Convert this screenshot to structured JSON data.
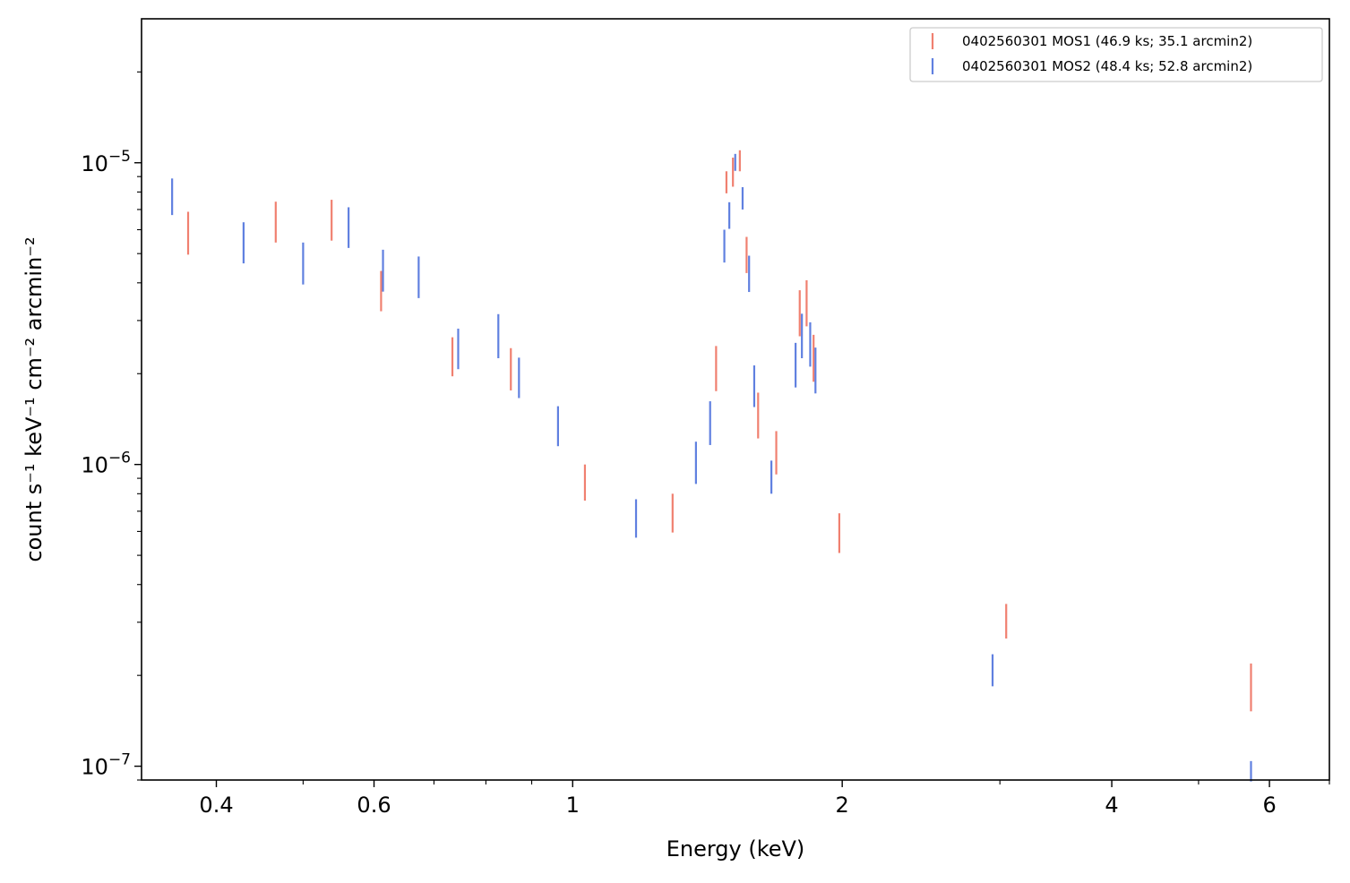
{
  "chart_data": {
    "type": "scatter",
    "style": "vertical error bars",
    "xlabel": "Energy (keV)",
    "ylabel": "count s⁻¹ keV⁻¹ cm⁻² arcmin⁻²",
    "xscale": "log",
    "yscale": "log",
    "xlim": [
      0.33,
      7.0
    ],
    "ylim": [
      9e-08,
      3e-05
    ],
    "x_ticks": [
      {
        "value": 0.4,
        "label": "0.4"
      },
      {
        "value": 0.6,
        "label": "0.6"
      },
      {
        "value": 1,
        "label": "1"
      },
      {
        "value": 2,
        "label": "2"
      },
      {
        "value": 4,
        "label": "4"
      },
      {
        "value": 6,
        "label": "6"
      }
    ],
    "y_ticks": [
      {
        "value": 1e-05,
        "base": "10",
        "exp": "−5"
      },
      {
        "value": 1e-06,
        "base": "10",
        "exp": "−6"
      },
      {
        "value": 1e-07,
        "base": "10",
        "exp": "−7"
      }
    ],
    "grid": false,
    "legend_position": "top-right",
    "series": [
      {
        "name": "0402560301 MOS1 (46.9 ks; 35.1 arcmin2)",
        "color": "#f08070",
        "points": [
          {
            "x": 0.372,
            "y_low": 4.96e-06,
            "y_high": 6.88e-06
          },
          {
            "x": 0.466,
            "y_low": 5.44e-06,
            "y_high": 7.43e-06
          },
          {
            "x": 0.538,
            "y_low": 5.52e-06,
            "y_high": 7.54e-06
          },
          {
            "x": 0.611,
            "y_low": 3.22e-06,
            "y_high": 4.38e-06
          },
          {
            "x": 0.734,
            "y_low": 1.96e-06,
            "y_high": 2.64e-06
          },
          {
            "x": 0.853,
            "y_low": 1.76e-06,
            "y_high": 2.43e-06
          },
          {
            "x": 1.032,
            "y_low": 7.59e-07,
            "y_high": 1e-06
          },
          {
            "x": 1.293,
            "y_low": 5.95e-07,
            "y_high": 8e-07
          },
          {
            "x": 1.446,
            "y_low": 1.75e-06,
            "y_high": 2.47e-06
          },
          {
            "x": 1.485,
            "y_low": 7.92e-06,
            "y_high": 9.37e-06
          },
          {
            "x": 1.51,
            "y_low": 8.33e-06,
            "y_high": 1.04e-05
          },
          {
            "x": 1.537,
            "y_low": 9.37e-06,
            "y_high": 1.1e-05
          },
          {
            "x": 1.564,
            "y_low": 4.31e-06,
            "y_high": 5.68e-06
          },
          {
            "x": 1.611,
            "y_low": 1.22e-06,
            "y_high": 1.73e-06
          },
          {
            "x": 1.688,
            "y_low": 9.27e-07,
            "y_high": 1.29e-06
          },
          {
            "x": 1.793,
            "y_low": 2.66e-06,
            "y_high": 3.78e-06
          },
          {
            "x": 1.825,
            "y_low": 2.87e-06,
            "y_high": 4.08e-06
          },
          {
            "x": 1.858,
            "y_low": 1.88e-06,
            "y_high": 2.69e-06
          },
          {
            "x": 1.985,
            "y_low": 5.09e-07,
            "y_high": 6.89e-07
          },
          {
            "x": 3.049,
            "y_low": 2.65e-07,
            "y_high": 3.45e-07
          },
          {
            "x": 5.722,
            "y_low": 1.52e-07,
            "y_high": 2.19e-07
          }
        ]
      },
      {
        "name": "0402560301 MOS2 (48.4 ks; 52.8 arcmin2)",
        "color": "#6080e0",
        "points": [
          {
            "x": 0.357,
            "y_low": 6.71e-06,
            "y_high": 8.87e-06
          },
          {
            "x": 0.429,
            "y_low": 4.64e-06,
            "y_high": 6.35e-06
          },
          {
            "x": 0.5,
            "y_low": 3.95e-06,
            "y_high": 5.44e-06
          },
          {
            "x": 0.562,
            "y_low": 5.22e-06,
            "y_high": 7.12e-06
          },
          {
            "x": 0.614,
            "y_low": 3.74e-06,
            "y_high": 5.15e-06
          },
          {
            "x": 0.673,
            "y_low": 3.56e-06,
            "y_high": 4.89e-06
          },
          {
            "x": 0.745,
            "y_low": 2.07e-06,
            "y_high": 2.82e-06
          },
          {
            "x": 0.826,
            "y_low": 2.25e-06,
            "y_high": 3.15e-06
          },
          {
            "x": 0.871,
            "y_low": 1.66e-06,
            "y_high": 2.26e-06
          },
          {
            "x": 0.963,
            "y_low": 1.15e-06,
            "y_high": 1.56e-06
          },
          {
            "x": 1.177,
            "y_low": 5.72e-07,
            "y_high": 7.67e-07
          },
          {
            "x": 1.373,
            "y_low": 8.62e-07,
            "y_high": 1.19e-06
          },
          {
            "x": 1.424,
            "y_low": 1.16e-06,
            "y_high": 1.62e-06
          },
          {
            "x": 1.477,
            "y_low": 4.67e-06,
            "y_high": 6e-06
          },
          {
            "x": 1.496,
            "y_low": 6.04e-06,
            "y_high": 7.4e-06
          },
          {
            "x": 1.519,
            "y_low": 9.4e-06,
            "y_high": 1.07e-05
          },
          {
            "x": 1.548,
            "y_low": 7e-06,
            "y_high": 8.3e-06
          },
          {
            "x": 1.574,
            "y_low": 3.73e-06,
            "y_high": 4.92e-06
          },
          {
            "x": 1.595,
            "y_low": 1.55e-06,
            "y_high": 2.13e-06
          },
          {
            "x": 1.667,
            "y_low": 8e-07,
            "y_high": 1.03e-06
          },
          {
            "x": 1.774,
            "y_low": 1.8e-06,
            "y_high": 2.53e-06
          },
          {
            "x": 1.803,
            "y_low": 2.25e-06,
            "y_high": 3.16e-06
          },
          {
            "x": 1.842,
            "y_low": 2.11e-06,
            "y_high": 2.96e-06
          },
          {
            "x": 1.867,
            "y_low": 1.72e-06,
            "y_high": 2.44e-06
          },
          {
            "x": 2.944,
            "y_low": 1.84e-07,
            "y_high": 2.35e-07
          },
          {
            "x": 5.722,
            "y_low": 8.9e-08,
            "y_high": 1.04e-07
          }
        ]
      }
    ]
  }
}
